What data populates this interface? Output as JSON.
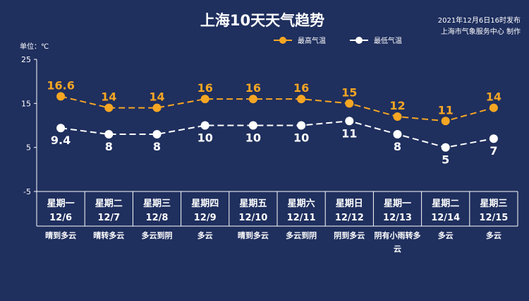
{
  "title": "上海10天天气趋势",
  "publish_time": "2021年12月6日16时发布",
  "publisher": "上海市气象服务中心 制作",
  "unit_label": "单位：℃",
  "colors": {
    "background": "#1f2f5e",
    "high": "#f5a623",
    "low": "#ffffff",
    "grid": "#ffffff"
  },
  "chart_data": {
    "type": "line",
    "ylim": [
      -5,
      25
    ],
    "yticks": [
      25,
      15,
      5,
      -5
    ],
    "legend_position": "top-right",
    "categories": [
      "12/6",
      "12/7",
      "12/8",
      "12/9",
      "12/10",
      "12/11",
      "12/12",
      "12/13",
      "12/14",
      "12/15"
    ],
    "weekdays": [
      "星期一",
      "星期二",
      "星期三",
      "星期四",
      "星期五",
      "星期六",
      "星期日",
      "星期一",
      "星期二",
      "星期三"
    ],
    "weather": [
      "晴到多云",
      "晴转多云",
      "多云到阴",
      "多云",
      "晴到多云",
      "多云到阴",
      "阴到多云",
      "阴有小雨转多云",
      "多云",
      "多云"
    ],
    "series": [
      {
        "name": "最高气温",
        "values": [
          16.6,
          14,
          14,
          16,
          16,
          16,
          15,
          12,
          11,
          14
        ]
      },
      {
        "name": "最低气温",
        "values": [
          9.4,
          8,
          8,
          10,
          10,
          10,
          11,
          8,
          5,
          7
        ]
      }
    ]
  }
}
